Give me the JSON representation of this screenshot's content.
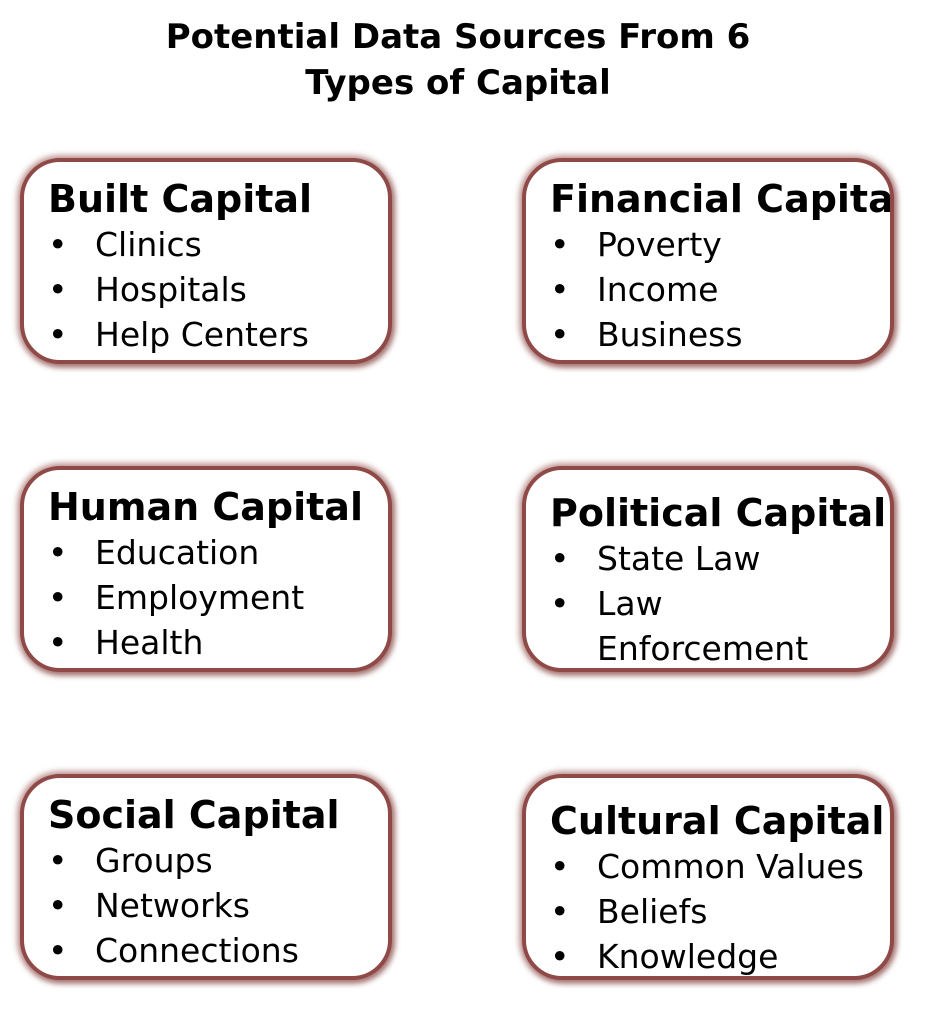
{
  "title": {
    "line1": "Potential Data Sources From 6",
    "line2": "Types of Capital"
  },
  "boxes": [
    {
      "title": "Built Capital",
      "items": [
        "Clinics",
        "Hospitals",
        "Help Centers"
      ]
    },
    {
      "title": "Financial Capital",
      "items": [
        "Poverty",
        "Income",
        "Business"
      ]
    },
    {
      "title": "Human Capital",
      "items": [
        "Education",
        "Employment",
        "Health"
      ]
    },
    {
      "title": "Political Capital",
      "items": [
        "State Law",
        "Law Enforcement"
      ]
    },
    {
      "title": "Social Capital",
      "items": [
        "Groups",
        "Networks",
        "Connections"
      ]
    },
    {
      "title": "Cultural Capital",
      "items": [
        "Common Values",
        "Beliefs",
        "Knowledge"
      ]
    }
  ],
  "bullet_symbol": "•",
  "colors": {
    "box_border": "#8f4a47",
    "text": "#000000",
    "background": "#ffffff"
  }
}
